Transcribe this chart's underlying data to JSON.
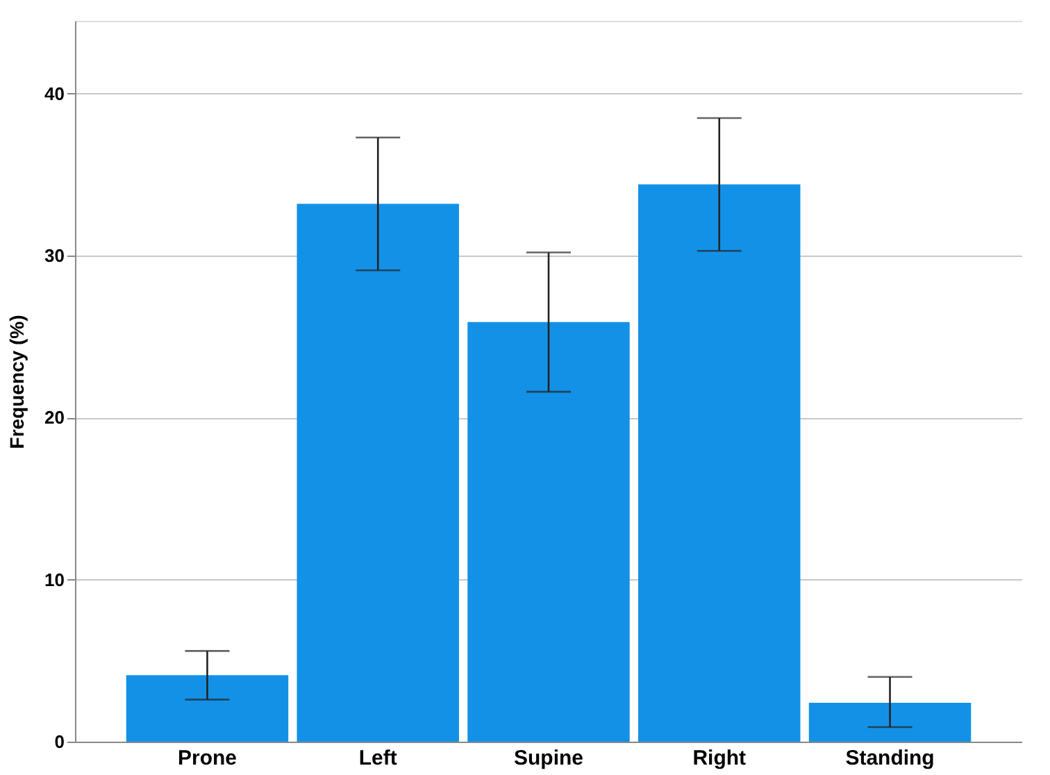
{
  "chart_data": {
    "type": "bar",
    "ylabel": "Frequency (%)",
    "categories": [
      "Prone",
      "Left",
      "Supine",
      "Right",
      "Standing"
    ],
    "values": [
      4.1,
      33.2,
      25.9,
      34.4,
      2.4
    ],
    "errors": [
      [
        2.6,
        5.6
      ],
      [
        29.1,
        37.3
      ],
      [
        21.6,
        30.2
      ],
      [
        30.3,
        38.5
      ],
      [
        0.9,
        4.0
      ]
    ],
    "color": "#1391e6",
    "ylim": [
      0,
      44.5
    ],
    "yticks": [
      0,
      10,
      20,
      30,
      40
    ],
    "grid": "y"
  }
}
